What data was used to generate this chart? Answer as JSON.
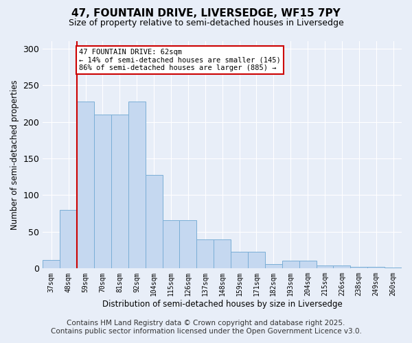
{
  "title": "47, FOUNTAIN DRIVE, LIVERSEDGE, WF15 7PY",
  "subtitle": "Size of property relative to semi-detached houses in Liversedge",
  "xlabel": "Distribution of semi-detached houses by size in Liversedge",
  "ylabel": "Number of semi-detached properties",
  "bin_labels": [
    "37sqm",
    "48sqm",
    "59sqm",
    "70sqm",
    "81sqm",
    "92sqm",
    "104sqm",
    "115sqm",
    "126sqm",
    "137sqm",
    "148sqm",
    "159sqm",
    "171sqm",
    "182sqm",
    "193sqm",
    "204sqm",
    "215sqm",
    "226sqm",
    "238sqm",
    "249sqm",
    "260sqm"
  ],
  "bar_heights": [
    12,
    80,
    228,
    210,
    210,
    228,
    128,
    66,
    66,
    40,
    40,
    23,
    23,
    6,
    11,
    11,
    4,
    4,
    2,
    2,
    1
  ],
  "bar_color": "#c5d8f0",
  "bar_edgecolor": "#7aaed6",
  "annotation_title": "47 FOUNTAIN DRIVE: 62sqm",
  "annotation_line1": "← 14% of semi-detached houses are smaller (145)",
  "annotation_line2": "86% of semi-detached houses are larger (885) →",
  "annotation_box_color": "#ffffff",
  "annotation_box_edgecolor": "#cc0000",
  "red_line_color": "#cc0000",
  "red_line_bar_index": 2,
  "ylim": [
    0,
    310
  ],
  "yticks": [
    0,
    50,
    100,
    150,
    200,
    250,
    300
  ],
  "background_color": "#e8eef8",
  "grid_color": "#ffffff",
  "footer_line1": "Contains HM Land Registry data © Crown copyright and database right 2025.",
  "footer_line2": "Contains public sector information licensed under the Open Government Licence v3.0.",
  "footer_fontsize": 7.5,
  "title_fontsize": 11,
  "subtitle_fontsize": 9
}
